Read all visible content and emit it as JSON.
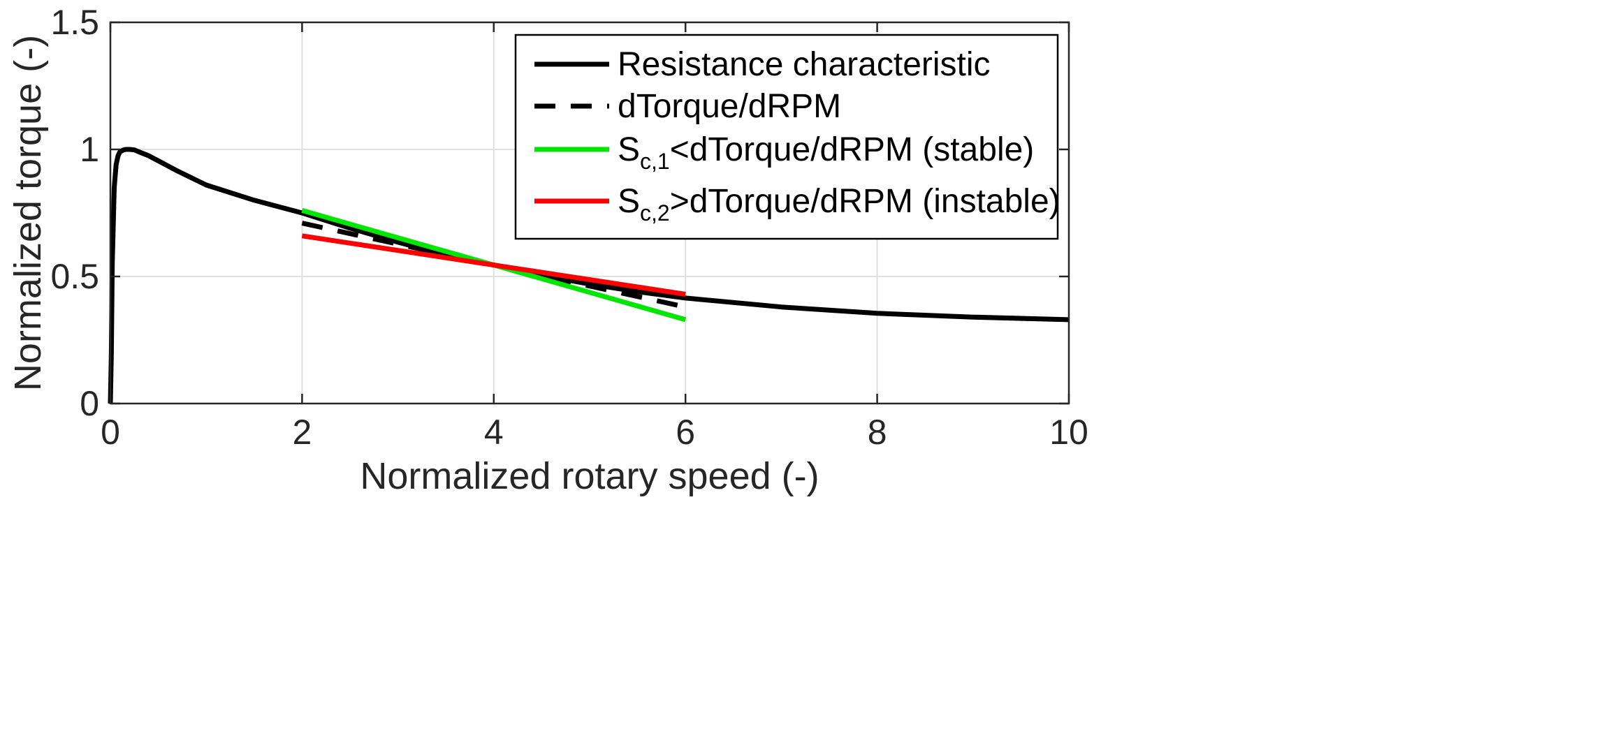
{
  "chart_data": {
    "type": "line",
    "title": "",
    "xlabel": "Normalized rotary speed (-)",
    "ylabel": "Normalized torque (-)",
    "xlim": [
      0,
      10
    ],
    "ylim": [
      0,
      1.5
    ],
    "xticks": [
      0,
      2,
      4,
      6,
      8,
      10
    ],
    "yticks": [
      0,
      0.5,
      1,
      1.5
    ],
    "xtick_labels": [
      "0",
      "2",
      "4",
      "6",
      "8",
      "10"
    ],
    "ytick_labels": [
      "0",
      "0.5",
      "1",
      "1.5"
    ],
    "grid": true,
    "legend_position": "top-right",
    "series": [
      {
        "name": "Resistance characteristic",
        "legend_main": "Resistance characteristic",
        "color": "#000000",
        "style": "solid",
        "x": [
          0.0,
          0.01,
          0.02,
          0.04,
          0.06,
          0.08,
          0.1,
          0.13,
          0.16,
          0.2,
          0.25,
          0.3,
          0.4,
          0.5,
          0.7,
          1.0,
          1.5,
          2.0,
          2.5,
          3.0,
          3.5,
          4.0,
          4.5,
          5.0,
          5.5,
          6.0,
          7.0,
          8.0,
          9.0,
          10.0
        ],
        "y": [
          0.0,
          0.2,
          0.55,
          0.85,
          0.94,
          0.975,
          0.99,
          0.997,
          1.0,
          1.0,
          0.998,
          0.99,
          0.975,
          0.955,
          0.915,
          0.86,
          0.8,
          0.75,
          0.69,
          0.635,
          0.585,
          0.545,
          0.505,
          0.47,
          0.44,
          0.415,
          0.38,
          0.355,
          0.34,
          0.33
        ]
      },
      {
        "name": "dTorque/dRPM",
        "legend_main": "dTorque/dRPM",
        "color": "#000000",
        "style": "dashed",
        "x": [
          2,
          6
        ],
        "y": [
          0.71,
          0.38
        ]
      },
      {
        "name": "Sc,1<dTorque/dRPM (stable)",
        "legend_pre": "S",
        "legend_sub": "c,1",
        "legend_post": "<dTorque/dRPM (stable)",
        "color": "#00e600",
        "style": "solid",
        "x": [
          2,
          6
        ],
        "y": [
          0.76,
          0.33
        ]
      },
      {
        "name": "Sc,2>dTorque/dRPM (instable)",
        "legend_pre": "S",
        "legend_sub": "c,2",
        "legend_post": ">dTorque/dRPM (instable)",
        "color": "#ff0000",
        "style": "solid",
        "x": [
          2,
          6
        ],
        "y": [
          0.66,
          0.43
        ]
      }
    ]
  }
}
